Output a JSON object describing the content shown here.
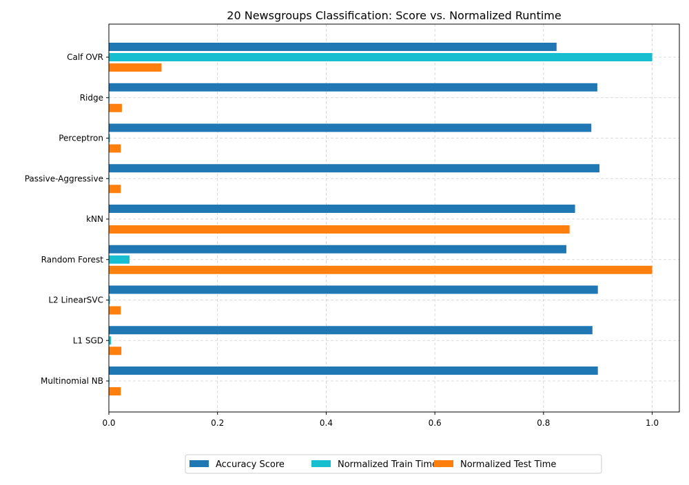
{
  "chart_data": {
    "type": "bar",
    "orientation": "horizontal",
    "title": "20 Newsgroups Classification: Score vs. Normalized Runtime",
    "xlabel": "",
    "ylabel": "",
    "xlim": [
      0,
      1.05
    ],
    "xticks": [
      0.0,
      0.2,
      0.4,
      0.6,
      0.8,
      1.0
    ],
    "xtick_labels": [
      "0.0",
      "0.2",
      "0.4",
      "0.6",
      "0.8",
      "1.0"
    ],
    "grid": true,
    "legend_position": "bottom-center",
    "categories": [
      "Calf OVR",
      "Ridge",
      "Perceptron",
      "Passive-Aggressive",
      "kNN",
      "Random Forest",
      "L2 LinearSVC",
      "L1 SGD",
      "Multinomial NB"
    ],
    "series": [
      {
        "name": "Accuracy Score",
        "color": "#1f77b4",
        "values": [
          0.824,
          0.899,
          0.888,
          0.903,
          0.858,
          0.842,
          0.9,
          0.89,
          0.9
        ]
      },
      {
        "name": "Normalized Train Time",
        "color": "#17becf",
        "values": [
          1.0,
          0.001,
          0.002,
          0.001,
          0.0,
          0.038,
          0.002,
          0.004,
          0.001
        ]
      },
      {
        "name": "Normalized Test Time",
        "color": "#ff7f0e",
        "values": [
          0.097,
          0.024,
          0.022,
          0.022,
          0.848,
          1.0,
          0.022,
          0.023,
          0.022
        ]
      }
    ]
  }
}
